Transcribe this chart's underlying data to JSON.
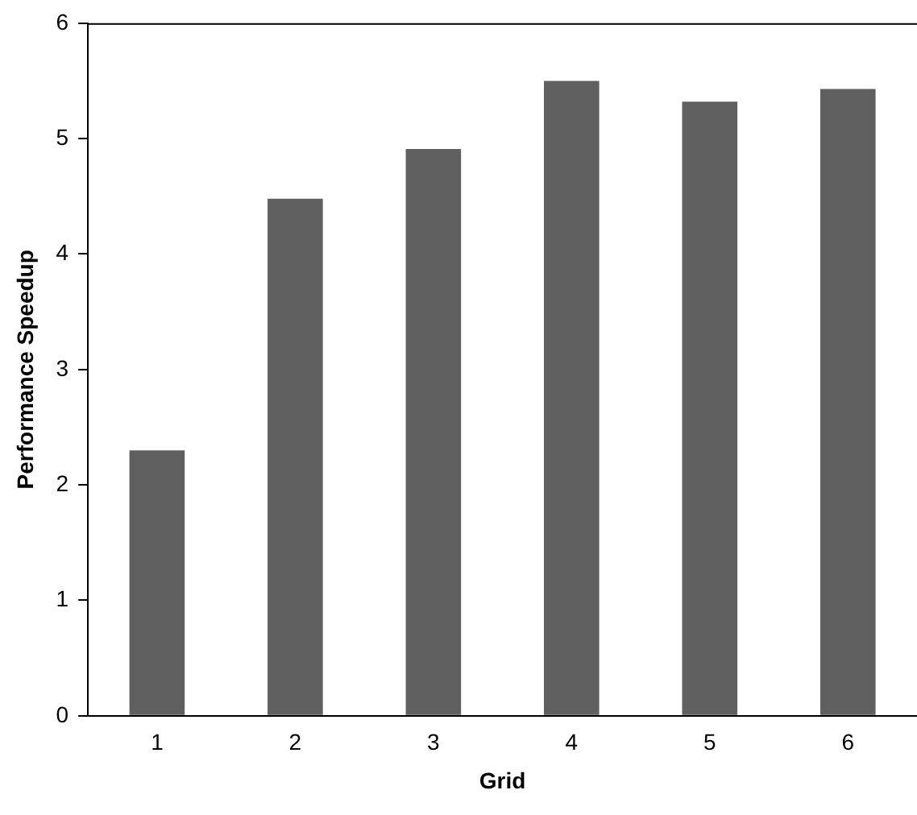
{
  "chart_data": {
    "type": "bar",
    "xlabel": "Grid",
    "ylabel": "Performance Speedup",
    "categories": [
      "1",
      "2",
      "3",
      "4",
      "5",
      "6"
    ],
    "values": [
      2.3,
      4.48,
      4.91,
      5.5,
      5.32,
      5.43
    ],
    "color": "#5f5f5f",
    "ylim": [
      0,
      6
    ],
    "yticks": [
      0,
      1,
      2,
      3,
      4,
      5,
      6
    ],
    "grid": false,
    "legend": false
  }
}
